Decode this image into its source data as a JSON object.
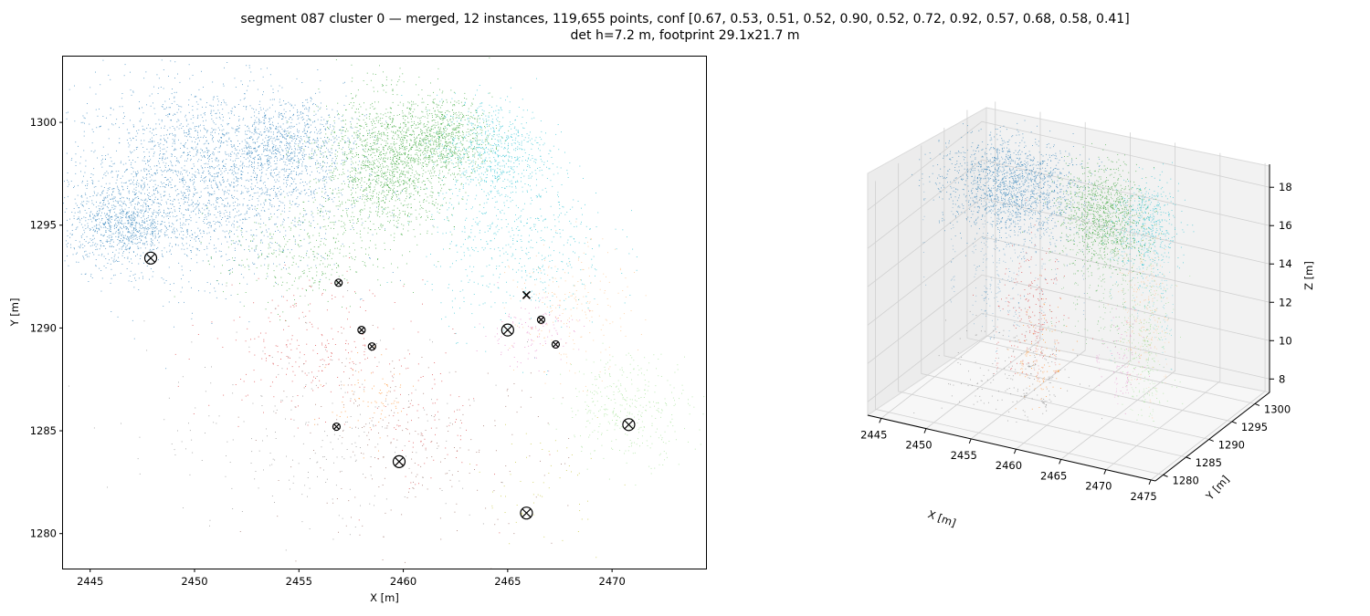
{
  "figure": {
    "title_line1": "segment 087 cluster 0 — merged, 12 instances, 119,655 points, conf [0.67, 0.53, 0.51, 0.52, 0.90, 0.52, 0.72, 0.92, 0.57, 0.68, 0.58, 0.41]",
    "title_line2": "det h=7.2 m, footprint 29.1x21.7 m"
  },
  "colors": {
    "blue": "#1f77b4",
    "orange": "#ff7f0e",
    "green": "#2ca02c",
    "red": "#d62728",
    "purple": "#9467bd",
    "brown": "#8c564b",
    "pink": "#e377c2",
    "gray": "#7f7f7f",
    "olive": "#bcbd22",
    "cyan": "#17becf",
    "lightgreen": "#98df8a",
    "lightorange": "#ffbb78"
  },
  "chart_data": [
    {
      "type": "scatter",
      "xlabel": "X [m]",
      "ylabel": "Y [m]",
      "xlim": [
        2443.7,
        2474.5
      ],
      "ylim": [
        1278.3,
        1303.2
      ],
      "xticks": [
        2445,
        2450,
        2455,
        2460,
        2465,
        2470
      ],
      "yticks": [
        1280,
        1285,
        1290,
        1295,
        1300
      ],
      "grid": false,
      "clusters": [
        {
          "color": "#1f77b4",
          "cx": 2450.5,
          "cy": 1297.3,
          "sx": 3.3,
          "sy": 2.3,
          "n": 2600
        },
        {
          "color": "#1f77b4",
          "cx": 2446.5,
          "cy": 1295.0,
          "sx": 1.3,
          "sy": 1.0,
          "n": 900
        },
        {
          "color": "#1f77b4",
          "cx": 2454.5,
          "cy": 1299.0,
          "sx": 1.5,
          "sy": 1.0,
          "n": 700
        },
        {
          "color": "#2ca02c",
          "cx": 2459.3,
          "cy": 1298.0,
          "sx": 1.6,
          "sy": 1.7,
          "n": 1700
        },
        {
          "color": "#2ca02c",
          "cx": 2462.0,
          "cy": 1299.3,
          "sx": 1.1,
          "sy": 0.9,
          "n": 700
        },
        {
          "color": "#2ca02c",
          "cx": 2455.0,
          "cy": 1293.5,
          "sx": 1.8,
          "sy": 1.3,
          "n": 350
        },
        {
          "color": "#17becf",
          "cx": 2464.3,
          "cy": 1298.6,
          "sx": 1.3,
          "sy": 1.3,
          "n": 700
        },
        {
          "color": "#17becf",
          "cx": 2465.5,
          "cy": 1294.0,
          "sx": 2.2,
          "sy": 2.0,
          "n": 550
        },
        {
          "color": "#d62728",
          "cx": 2455.5,
          "cy": 1289.0,
          "sx": 2.3,
          "sy": 1.6,
          "n": 260
        },
        {
          "color": "#d62728",
          "cx": 2461.0,
          "cy": 1285.5,
          "sx": 1.4,
          "sy": 1.8,
          "n": 90
        },
        {
          "color": "#ff7f0e",
          "cx": 2458.5,
          "cy": 1286.5,
          "sx": 1.0,
          "sy": 1.0,
          "n": 80
        },
        {
          "color": "#ffbb78",
          "cx": 2468.0,
          "cy": 1290.8,
          "sx": 1.4,
          "sy": 1.6,
          "n": 220
        },
        {
          "color": "#98df8a",
          "cx": 2470.8,
          "cy": 1286.2,
          "sx": 1.5,
          "sy": 1.3,
          "n": 380
        },
        {
          "color": "#e377c2",
          "cx": 2466.0,
          "cy": 1289.8,
          "sx": 1.2,
          "sy": 0.8,
          "n": 120
        },
        {
          "color": "#8c564b",
          "cx": 2460.5,
          "cy": 1284.0,
          "sx": 3.5,
          "sy": 2.2,
          "n": 220
        },
        {
          "color": "#7f7f7f",
          "cx": 2456.0,
          "cy": 1285.0,
          "sx": 4.0,
          "sy": 2.5,
          "n": 260
        },
        {
          "color": "#bcbd22",
          "cx": 2466.5,
          "cy": 1282.5,
          "sx": 1.5,
          "sy": 1.5,
          "n": 60
        }
      ],
      "markers_large": [
        [
          2447.9,
          1293.4
        ],
        [
          2465.0,
          1289.9
        ],
        [
          2470.8,
          1285.3
        ],
        [
          2459.8,
          1283.5
        ],
        [
          2465.9,
          1281.0
        ]
      ],
      "markers_small": [
        [
          2456.9,
          1292.2
        ],
        [
          2458.0,
          1289.9
        ],
        [
          2458.5,
          1289.1
        ],
        [
          2466.6,
          1290.4
        ],
        [
          2467.3,
          1289.2
        ],
        [
          2456.8,
          1285.2
        ]
      ],
      "markers_x": [
        [
          2465.9,
          1291.6
        ]
      ]
    },
    {
      "type": "scatter3d",
      "xlabel": "X [m]",
      "ylabel": "Y [m]",
      "zlabel": "Z [m]",
      "xticks": [
        2445,
        2450,
        2455,
        2460,
        2465,
        2470,
        2475
      ],
      "yticks": [
        1280,
        1285,
        1290,
        1295,
        1300
      ],
      "zticks": [
        8,
        10,
        12,
        14,
        16,
        18
      ],
      "xlim": [
        2443.5,
        2475.5
      ],
      "ylim": [
        1278.3,
        1303.2
      ],
      "zlim": [
        7.3,
        19.2
      ],
      "grid": true,
      "canopies": [
        {
          "color": "#1f77b4",
          "cx": 2450.0,
          "cy": 1297.0,
          "cz": 16.5,
          "sx": 3.5,
          "sy": 2.5,
          "sz": 1.2,
          "n": 1700
        },
        {
          "color": "#2ca02c",
          "cx": 2459.5,
          "cy": 1298.0,
          "cz": 15.8,
          "sx": 2.2,
          "sy": 1.6,
          "sz": 1.3,
          "n": 1100
        },
        {
          "color": "#17becf",
          "cx": 2465.0,
          "cy": 1297.0,
          "cz": 16.0,
          "sx": 1.5,
          "sy": 2.0,
          "sz": 1.3,
          "n": 500
        },
        {
          "color": "#d62728",
          "cx": 2456.0,
          "cy": 1289.0,
          "cz": 12.5,
          "sx": 1.6,
          "sy": 1.5,
          "sz": 1.8,
          "n": 160
        },
        {
          "color": "#98df8a",
          "cx": 2470.5,
          "cy": 1286.0,
          "cz": 13.0,
          "sx": 1.5,
          "sy": 1.5,
          "sz": 2.0,
          "n": 200
        },
        {
          "color": "#ffbb78",
          "cx": 2468.0,
          "cy": 1290.5,
          "cz": 13.5,
          "sx": 1.2,
          "sy": 1.2,
          "sz": 2.0,
          "n": 150
        },
        {
          "color": "#ff7f0e",
          "cx": 2458.5,
          "cy": 1286.5,
          "cz": 10.5,
          "sx": 1.2,
          "sy": 1.2,
          "sz": 1.5,
          "n": 80
        },
        {
          "color": "#7f7f7f",
          "cx": 2456.0,
          "cy": 1285.0,
          "cz": 9.5,
          "sx": 3.5,
          "sy": 2.5,
          "sz": 1.2,
          "n": 160
        },
        {
          "color": "#e377c2",
          "cx": 2466.0,
          "cy": 1289.5,
          "cz": 11.0,
          "sx": 1.2,
          "sy": 1.0,
          "sz": 1.2,
          "n": 60
        }
      ]
    }
  ]
}
